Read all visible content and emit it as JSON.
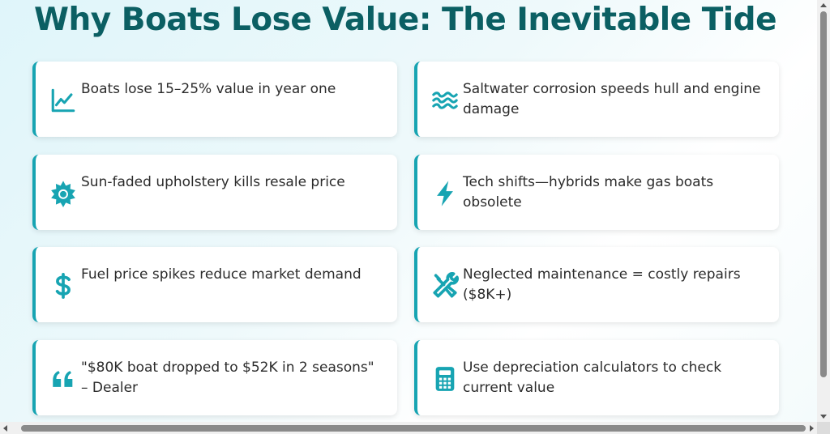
{
  "page": {
    "title": "Why Boats Lose Value: The Inevitable Tide"
  },
  "colors": {
    "title": "#0b5f63",
    "accent": "#17a4b2",
    "text": "#2b2b2b"
  },
  "cards": [
    {
      "icon": "chart-line-icon",
      "text": "Boats lose 15–25% value in year one"
    },
    {
      "icon": "water-waves-icon",
      "text": "Saltwater corrosion speeds hull and engine damage"
    },
    {
      "icon": "sun-icon",
      "text": "Sun-faded upholstery kills resale price"
    },
    {
      "icon": "lightning-bolt-icon",
      "text": "Tech shifts—hybrids make gas boats obsolete"
    },
    {
      "icon": "dollar-sign-icon",
      "text": "Fuel price spikes reduce market demand"
    },
    {
      "icon": "tools-icon",
      "text": "Neglected maintenance = costly repairs ($8K+)"
    },
    {
      "icon": "quote-icon",
      "text": "\"$80K boat dropped to $52K in 2 seasons\" – Dealer"
    },
    {
      "icon": "calculator-icon",
      "text": "Use depreciation calculators to check current value"
    }
  ]
}
